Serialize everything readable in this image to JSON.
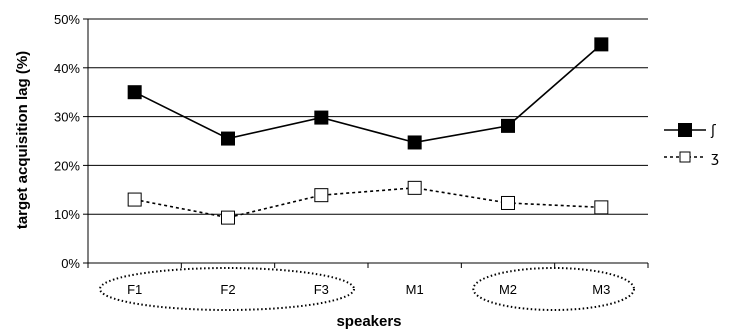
{
  "chart_data": {
    "type": "line",
    "categories": [
      "F1",
      "F2",
      "F3",
      "M1",
      "M2",
      "M3"
    ],
    "series": [
      {
        "name": "ʃ",
        "values": [
          35,
          25.5,
          29.8,
          24.7,
          28.1,
          44.8
        ],
        "color": "#000000",
        "marker": "filled-square",
        "line": "solid"
      },
      {
        "name": "ʒ",
        "values": [
          13,
          9.3,
          13.9,
          15.4,
          12.3,
          11.4
        ],
        "color": "#000000",
        "marker": "open-square",
        "line": "dashed"
      }
    ],
    "xlabel": "speakers",
    "ylabel": "target acquisition lag (%)",
    "ylim": [
      0,
      50
    ],
    "yticks": [
      "0%",
      "10%",
      "20%",
      "30%",
      "40%",
      "50%"
    ],
    "grid": true,
    "legend": "right",
    "groupings": [
      [
        "F1",
        "F2",
        "F3"
      ],
      [
        "M2",
        "M3"
      ]
    ]
  }
}
